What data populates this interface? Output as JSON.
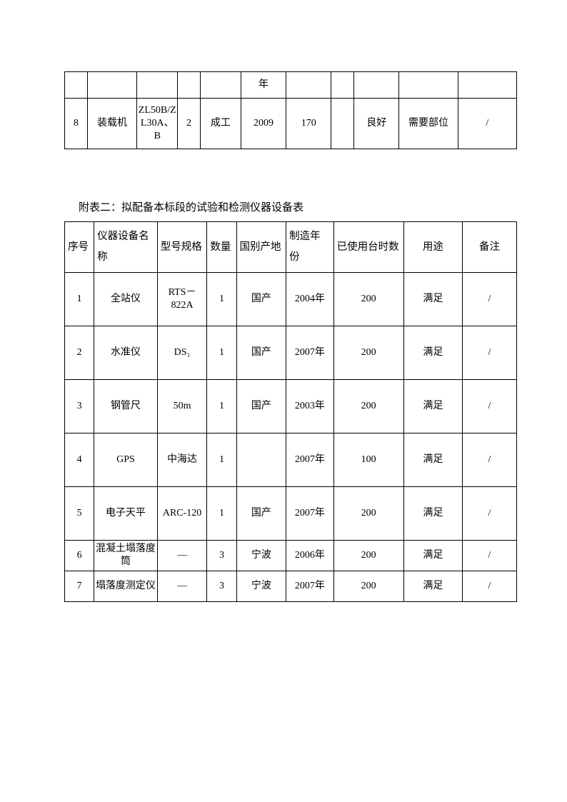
{
  "table1": {
    "col_widths": [
      "5%",
      "11%",
      "9%",
      "5%",
      "9%",
      "10%",
      "10%",
      "5%",
      "10%",
      "13%",
      "13%"
    ],
    "row1": [
      "",
      "",
      "",
      "",
      "",
      "年",
      "",
      "",
      "",
      "",
      ""
    ],
    "row2": [
      "8",
      "装载机",
      "ZL50B/ZL30A、B",
      "2",
      "成工",
      "2009",
      "170",
      "",
      "良好",
      "需要部位",
      "/"
    ]
  },
  "section_title": "附表二：拟配备本标段的试验和检测仪器设备表",
  "table2": {
    "col_widths": [
      "6.5%",
      "14%",
      "11%",
      "6.5%",
      "11%",
      "10.5%",
      "15.5%",
      "13%",
      "12%"
    ],
    "header": [
      "序号",
      "仪器设备名称",
      "型号规格",
      "数量",
      "国别产地",
      "制造年份",
      "已使用台时数",
      "用途",
      "备注"
    ],
    "rows": [
      {
        "class": "row-tall",
        "cells": [
          "1",
          "全站仪",
          "RTS－822A",
          "1",
          "国产",
          "2004年",
          "200",
          "满足",
          "/"
        ]
      },
      {
        "class": "row-tall",
        "cells": [
          "2",
          "水准仪",
          "DS₁",
          "1",
          "国产",
          "2007年",
          "200",
          "满足",
          "/"
        ]
      },
      {
        "class": "row-tall",
        "cells": [
          "3",
          "钢管尺",
          "50m",
          "1",
          "国产",
          "2003年",
          "200",
          "满足",
          "/"
        ]
      },
      {
        "class": "row-tall",
        "cells": [
          "4",
          "GPS",
          "中海达",
          "1",
          "",
          "2007年",
          "100",
          "满足",
          "/"
        ]
      },
      {
        "class": "row-tall",
        "cells": [
          "5",
          "电子天平",
          "ARC-120",
          "1",
          "国产",
          "2007年",
          "200",
          "满足",
          "/"
        ]
      },
      {
        "class": "row-short",
        "cells": [
          "6",
          "混凝土塌落度筒",
          "—",
          "3",
          "宁波",
          "2006年",
          "200",
          "满足",
          "/"
        ]
      },
      {
        "class": "row-short",
        "cells": [
          "7",
          "塌落度测定仪",
          "—",
          "3",
          "宁波",
          "2007年",
          "200",
          "满足",
          "/"
        ]
      }
    ]
  }
}
